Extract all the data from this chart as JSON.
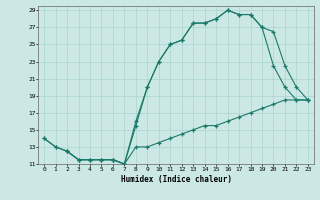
{
  "xlabel": "Humidex (Indice chaleur)",
  "bg_color": "#cce8e4",
  "grid_color": "#aad4cf",
  "line_color": "#1a7a6a",
  "xlim": [
    -0.5,
    23.5
  ],
  "ylim": [
    11,
    29.5
  ],
  "xticks": [
    0,
    1,
    2,
    3,
    4,
    5,
    6,
    7,
    8,
    9,
    10,
    11,
    12,
    13,
    14,
    15,
    16,
    17,
    18,
    19,
    20,
    21,
    22,
    23
  ],
  "yticks": [
    11,
    13,
    15,
    17,
    19,
    21,
    23,
    25,
    27,
    29
  ],
  "line1_x": [
    0,
    1,
    2,
    3,
    4,
    5,
    6,
    7,
    8,
    9,
    10,
    11,
    12,
    13,
    14,
    15,
    16,
    17,
    18,
    19,
    20,
    21,
    22,
    23
  ],
  "line1_y": [
    14,
    13,
    12.5,
    11.5,
    11.5,
    11.5,
    11.5,
    11,
    16,
    20,
    23,
    25,
    25.5,
    27.5,
    27.5,
    28,
    29,
    28.5,
    28.5,
    27,
    22.5,
    20,
    18.5,
    18.5
  ],
  "line2_x": [
    0,
    1,
    2,
    3,
    4,
    5,
    6,
    7,
    8,
    9,
    10,
    11,
    12,
    13,
    14,
    15,
    16,
    17,
    18,
    19,
    20,
    21,
    22,
    23
  ],
  "line2_y": [
    14,
    13,
    12.5,
    11.5,
    11.5,
    11.5,
    11.5,
    11,
    13,
    13,
    13.5,
    14,
    14.5,
    15,
    15.5,
    15.5,
    16,
    16.5,
    17,
    17.5,
    18,
    18.5,
    18.5,
    18.5
  ],
  "line3_x": [
    2,
    3,
    4,
    5,
    6,
    7,
    8,
    9,
    10,
    11,
    12,
    13,
    14,
    15,
    16,
    17,
    18,
    19,
    20,
    21,
    22,
    23
  ],
  "line3_y": [
    12.5,
    11.5,
    11.5,
    11.5,
    11.5,
    11,
    15.5,
    20,
    23,
    25,
    25.5,
    27.5,
    27.5,
    28,
    29,
    28.5,
    28.5,
    27,
    26.5,
    22.5,
    20,
    18.5
  ]
}
